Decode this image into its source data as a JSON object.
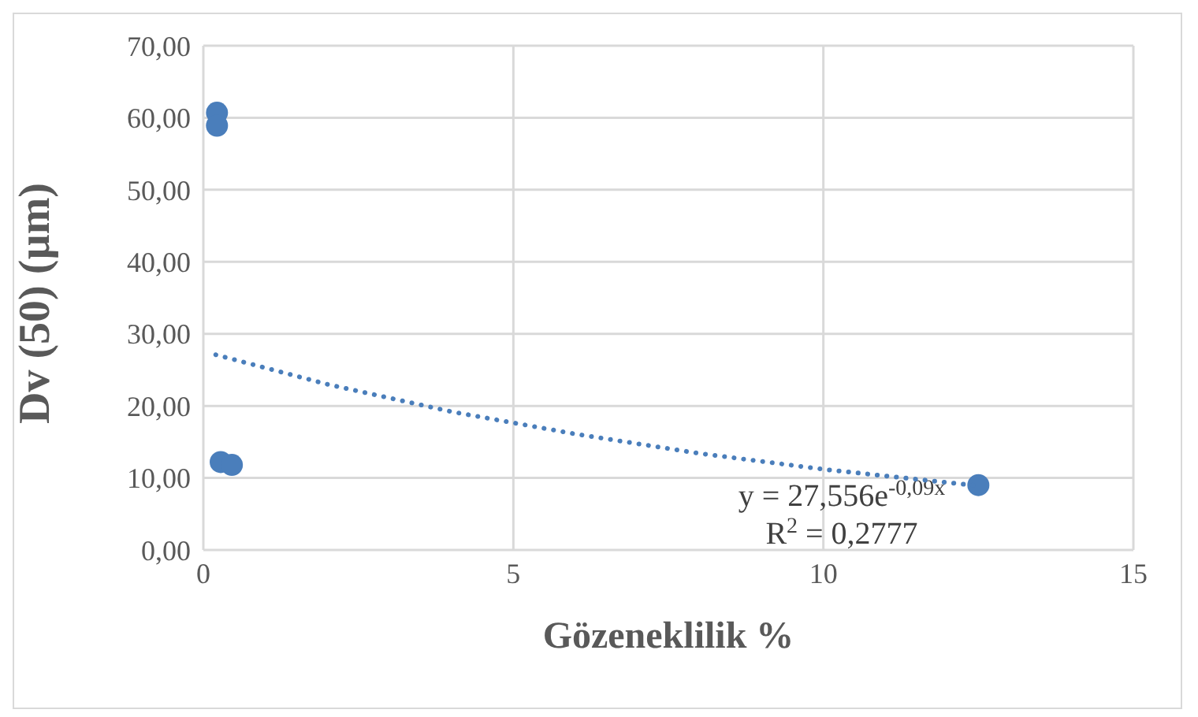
{
  "chart_data": {
    "type": "scatter",
    "xlabel": "Gözeneklilik %",
    "ylabel": "Dv (50) (µm)",
    "xlim": [
      0,
      15
    ],
    "xticks": [
      0,
      5,
      10,
      15
    ],
    "ylim": [
      0,
      70
    ],
    "yticks": [
      {
        "value": 0,
        "label": "0,00"
      },
      {
        "value": 10,
        "label": "10,00"
      },
      {
        "value": 20,
        "label": "20,00"
      },
      {
        "value": 30,
        "label": "30,00"
      },
      {
        "value": 40,
        "label": "40,00"
      },
      {
        "value": 50,
        "label": "50,00"
      },
      {
        "value": 60,
        "label": "60,00"
      },
      {
        "value": 70,
        "label": "70,00"
      }
    ],
    "grid": true,
    "legend": false,
    "series": [
      {
        "color": "#4a7ebb",
        "marker": "circle",
        "x": [
          0.22,
          0.22,
          0.28,
          0.46,
          12.5
        ],
        "values": [
          60.7,
          58.9,
          12.2,
          11.8,
          9.0
        ]
      },
      {
        "type": "line",
        "color": "#4a7ebb",
        "marker": "none",
        "line_style": "dotted",
        "x": [
          0.2,
          2,
          4,
          6,
          8,
          10,
          12.5
        ],
        "values": [
          27.1,
          23.0,
          19.2,
          16.1,
          13.4,
          11.2,
          8.9
        ]
      }
    ],
    "annotations": [
      "y = 27,556e$^{-0,09x}$",
      "R$^{2}$ = 0,2777"
    ]
  }
}
